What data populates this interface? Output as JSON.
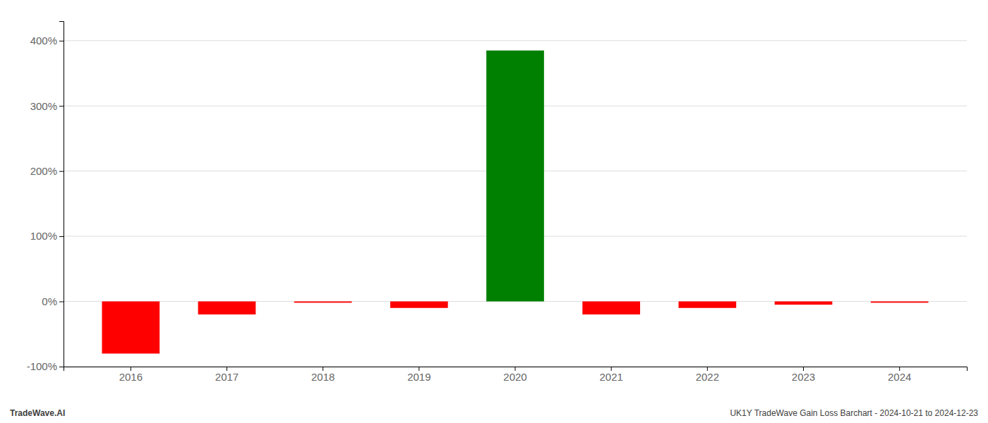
{
  "chart_data": {
    "type": "bar",
    "categories": [
      "2016",
      "2017",
      "2018",
      "2019",
      "2020",
      "2021",
      "2022",
      "2023",
      "2024"
    ],
    "values": [
      -80,
      -20,
      -2,
      -10,
      385,
      -20,
      -10,
      -5,
      -2
    ],
    "colors": [
      "#ff0000",
      "#ff0000",
      "#ff0000",
      "#ff0000",
      "#008000",
      "#ff0000",
      "#ff0000",
      "#ff0000",
      "#ff0000"
    ],
    "ylim": [
      -100,
      430
    ],
    "yticks": [
      {
        "value": -100,
        "label": "-100%"
      },
      {
        "value": 0,
        "label": "0%"
      },
      {
        "value": 100,
        "label": "100%"
      },
      {
        "value": 200,
        "label": "200%"
      },
      {
        "value": 300,
        "label": "300%"
      },
      {
        "value": 400,
        "label": "400%"
      }
    ],
    "grid": true,
    "annotations": [
      "TradeWave.AI",
      "UK1Y TradeWave Gain Loss Barchart - 2024-10-21 to 2024-12-23"
    ]
  }
}
